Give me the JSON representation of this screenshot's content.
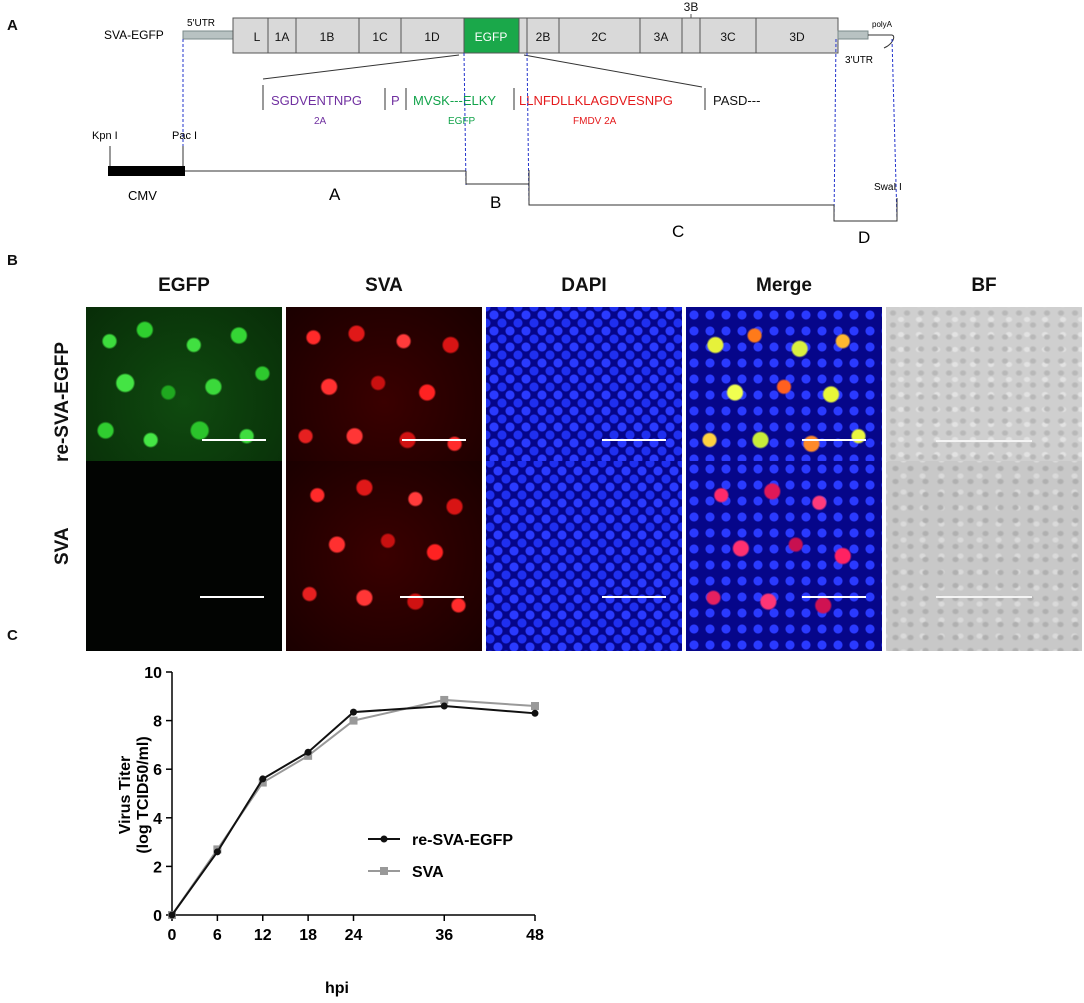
{
  "panel_labels": [
    "A",
    "B",
    "C"
  ],
  "panel_a": {
    "construct_name": "SVA-EGFP",
    "utr5": "5'UTR",
    "utr3": "3'UTR",
    "polya": "polyA",
    "genes": [
      "L",
      "1A",
      "1B",
      "1C",
      "1D",
      "EGFP",
      "2B",
      "2C",
      "3A",
      "3B",
      "3C",
      "3D"
    ],
    "seq_2a": "SGDVENTNPG",
    "seq_p": "P",
    "seq_egfp": "MVSK---ELKY",
    "seq_fmdv": "LLNFDLLKLAGDVESNPG",
    "seq_pasd": "PASD---",
    "lab_2a": "2A",
    "lab_egfp": "EGFP",
    "lab_fmdv": "FMDV 2A",
    "kpn": "Kpn I",
    "pac": "Pac I",
    "cmv": "CMV",
    "swa": "SwaI I",
    "fragments": [
      "A",
      "B",
      "C",
      "D"
    ],
    "colors": {
      "egfp_box": "#1aa84a",
      "gene_box": "#d9d9d9",
      "purple": "#7030a0",
      "green": "#12a34a",
      "red": "#e41a1c",
      "dashed": "#2233cc"
    }
  },
  "panel_b": {
    "columns": [
      "EGFP",
      "SVA",
      "DAPI",
      "Merge",
      "BF"
    ],
    "rows": [
      "re-SVA-EGFP",
      "SVA"
    ]
  },
  "chart_data": {
    "type": "line",
    "xlabel": "hpi",
    "ylabel_line1": "Virus Titer",
    "ylabel_line2": "(log TCID50/ml)",
    "x": [
      0,
      6,
      12,
      18,
      24,
      36,
      48
    ],
    "xticks": [
      "0",
      "6",
      "12",
      "18",
      "24",
      "36",
      "48"
    ],
    "yticks": [
      "0",
      "2",
      "4",
      "6",
      "8",
      "10"
    ],
    "xlim": [
      0,
      48
    ],
    "ylim": [
      0,
      10
    ],
    "series": [
      {
        "name": "re-SVA-EGFP",
        "values": [
          0,
          2.6,
          5.6,
          6.7,
          8.35,
          8.6,
          8.3
        ],
        "color": "#111111",
        "marker": "circle"
      },
      {
        "name": "SVA",
        "values": [
          0,
          2.7,
          5.45,
          6.55,
          8.0,
          8.85,
          8.6
        ],
        "color": "#999999",
        "marker": "square"
      }
    ],
    "legend_position": "lower-right"
  }
}
